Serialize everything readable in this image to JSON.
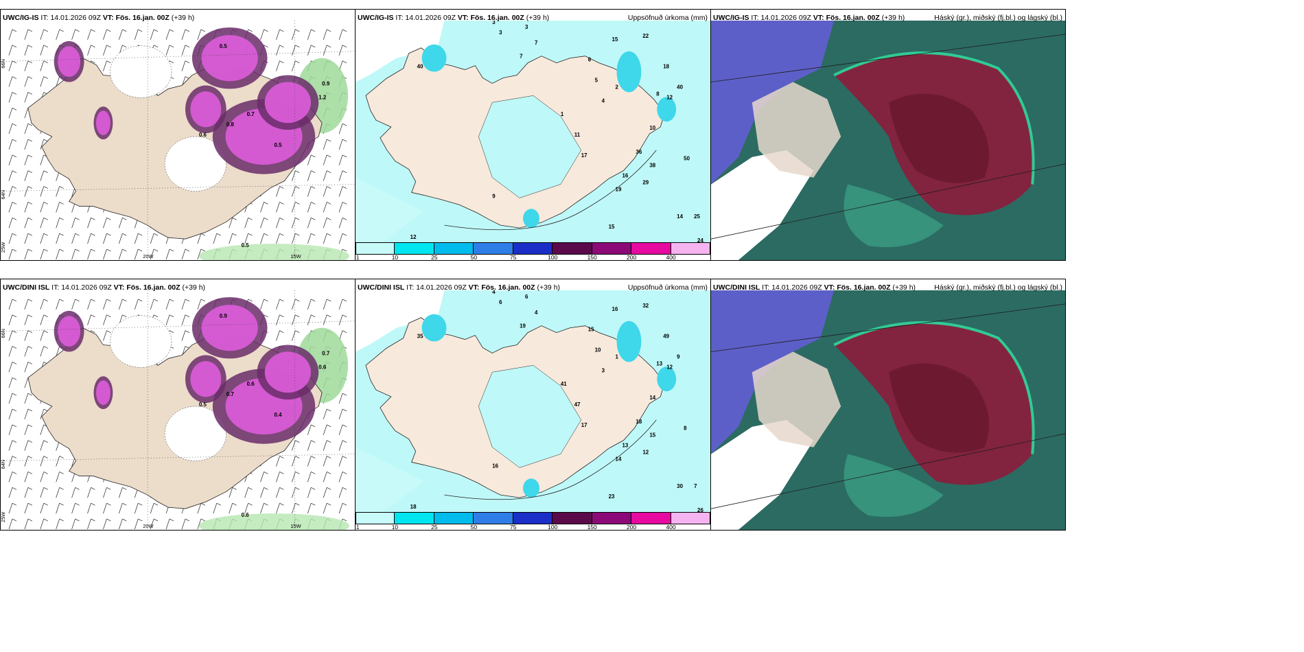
{
  "rows": [
    {
      "source": "UWC/IG-IS",
      "it_label": "IT:",
      "it_value": "14.01.2026 09Z",
      "vt_label": "VT:",
      "vt_value": "Fös. 16.jan. 00Z",
      "lead": "(+39 h)",
      "precip_title": "Uppsöfnuð úrkoma (mm)",
      "cloud_title": "Háský (gr.), miðský (fj.bl.) og lágský (bl.)",
      "ice_labels": [
        "0.5",
        "0.9",
        "1.2",
        "0.8",
        "0.7",
        "0.6",
        "0.5"
      ],
      "precip_labels": [
        "3",
        "3",
        "3",
        "7",
        "7",
        "15",
        "22",
        "40",
        "18",
        "10",
        "8",
        "12",
        "40",
        "50",
        "25",
        "24",
        "14",
        "15",
        "12",
        "9",
        "6",
        "5",
        "4",
        "2",
        "1",
        "11",
        "17",
        "19",
        "16",
        "29",
        "36",
        "38"
      ],
      "axis_lat": [
        "66N",
        "64N"
      ],
      "axis_lon": [
        "20W",
        "15W"
      ],
      "axis_corner": "25W",
      "bottom_value": "0.5"
    },
    {
      "source": "UWC/DINI ISL",
      "it_label": "IT:",
      "it_value": "14.01.2026 09Z",
      "vt_label": "VT:",
      "vt_value": "Fös. 16.jan. 00Z",
      "lead": "(+39 h)",
      "precip_title": "Uppsöfnuð úrkoma (mm)",
      "cloud_title": "Háský (gr.), miðský (fj.bl.) og lágský (bl.)",
      "ice_labels": [
        "0.9",
        "0.7",
        "0.6",
        "0.7",
        "0.6",
        "0.5",
        "0.4"
      ],
      "precip_labels": [
        "4",
        "6",
        "6",
        "4",
        "19",
        "16",
        "32",
        "35",
        "49",
        "14",
        "13",
        "12",
        "9",
        "8",
        "7",
        "26",
        "30",
        "23",
        "18",
        "16",
        "15",
        "10",
        "3",
        "1",
        "41",
        "47",
        "17",
        "14",
        "13",
        "12",
        "18",
        "15"
      ],
      "axis_lat": [
        "66N",
        "64N"
      ],
      "axis_lon": [
        "20W",
        "15W"
      ],
      "axis_corner": "25W",
      "bottom_value": "0.6"
    }
  ],
  "colorbar": {
    "labels": [
      "1",
      "10",
      "25",
      "50",
      "75",
      "100",
      "150",
      "200",
      "400"
    ],
    "colors": [
      "#c8fafa",
      "#00e6f0",
      "#00bcec",
      "#2f7ee8",
      "#1b2fc8",
      "#5a0a4a",
      "#8c0a78",
      "#e60aa0",
      "#f5b4f0"
    ]
  }
}
